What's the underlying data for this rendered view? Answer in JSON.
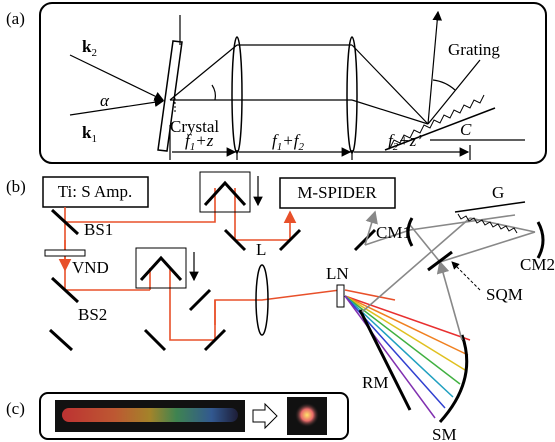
{
  "panel_a": {
    "label": "(a)",
    "k2": {
      "symbol": "k",
      "sub": "2"
    },
    "k1": {
      "symbol": "k",
      "sub": "1"
    },
    "alpha": "α",
    "crystal": "Crystal",
    "grating": "Grating",
    "c": "C",
    "dims": [
      [
        "f",
        "1",
        "+z"
      ],
      [
        "f",
        "1",
        "+",
        "f",
        "2"
      ],
      [
        "f",
        "2",
        "+z’"
      ]
    ]
  },
  "panel_b": {
    "label": "(b)",
    "laser": "Ti: S Amp.",
    "spider": "M-SPIDER",
    "bs1": "BS1",
    "vnd": "VND",
    "bs2": "BS2",
    "lens": "L",
    "crystal": "LN",
    "cm1": "CM1",
    "grating": "G",
    "cm2": "CM2",
    "sqm": "SQM",
    "rm": "RM",
    "sm": "SM"
  },
  "panel_c": {
    "label": "(c)"
  }
}
